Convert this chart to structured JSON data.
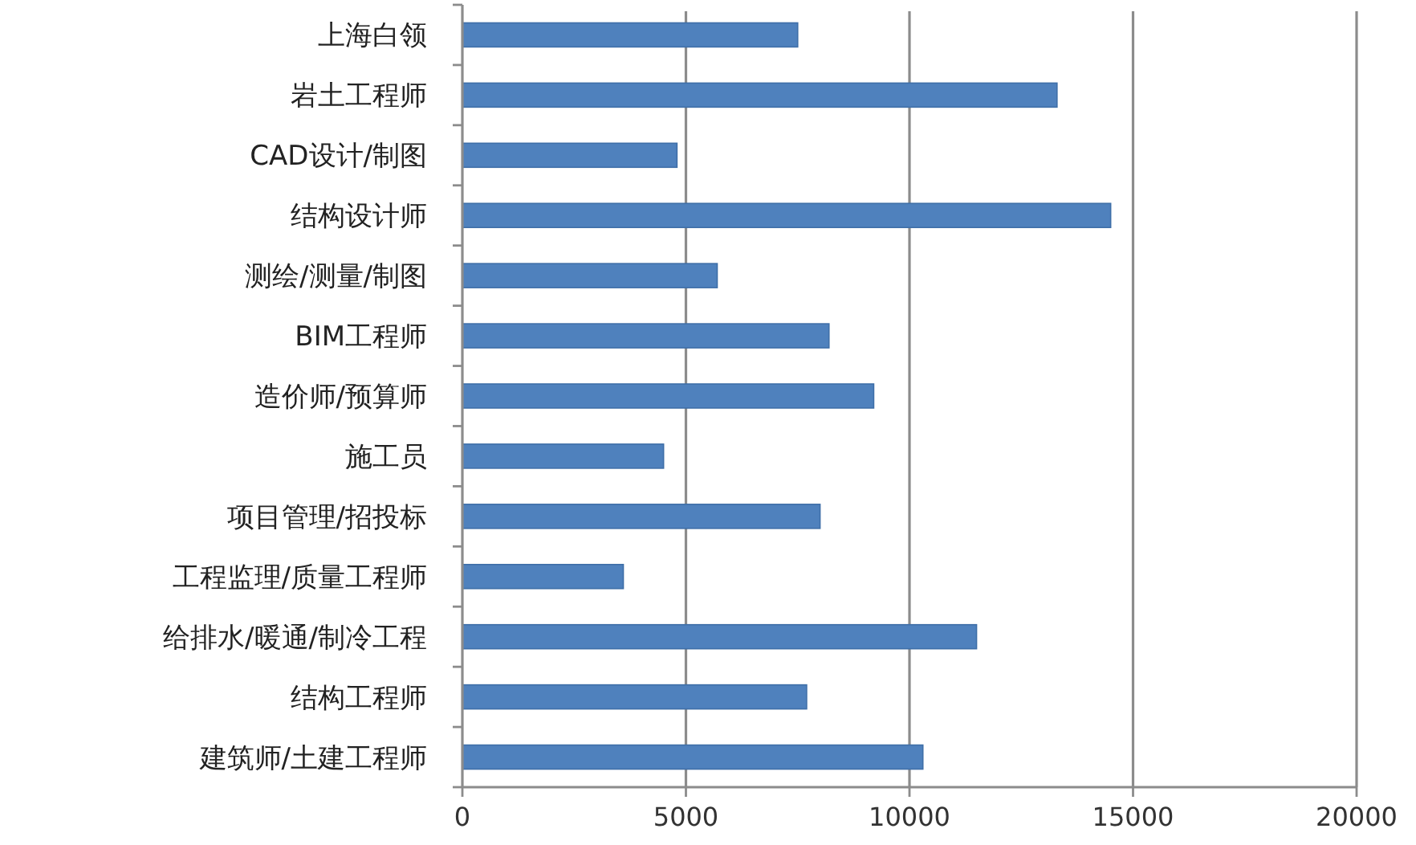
{
  "chart_data": {
    "type": "bar",
    "orientation": "horizontal",
    "categories": [
      "上海白领",
      "岩土工程师",
      "CAD设计/制图",
      "结构设计师",
      "测绘/测量/制图",
      "BIM工程师",
      "造价师/预算师",
      "施工员",
      "项目管理/招投标",
      "工程监理/质量工程师",
      "给排水/暖通/制冷工程",
      "结构工程师",
      "建筑师/土建工程师"
    ],
    "values": [
      7500,
      13300,
      4800,
      14500,
      5700,
      8200,
      9200,
      4500,
      8000,
      3600,
      11500,
      7700,
      10300
    ],
    "color": "#4f81bd",
    "xlim": [
      0,
      20000
    ],
    "xticks": [
      0,
      5000,
      10000,
      15000,
      20000
    ],
    "grid": "x"
  }
}
